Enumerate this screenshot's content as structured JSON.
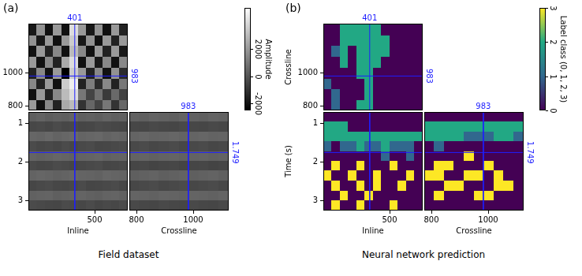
{
  "chart_data": [
    {
      "type": "heatmap",
      "panel_label": "(a)",
      "caption": "Field dataset",
      "colorbar": {
        "title": "Amplitude",
        "range": [
          -2500,
          5000
        ],
        "ticks": [
          -2000,
          0,
          2000
        ],
        "colors": [
          "#000000",
          "#ffffff"
        ]
      },
      "views": [
        {
          "xlim": [
            170,
            665
          ],
          "ylim": [
            775,
            1300
          ],
          "yticks": [
            800,
            1000
          ],
          "tick_labels": "y",
          "cursor_x": 401,
          "cursor_y": 983,
          "annotations": [
            {
              "text": "401",
              "x": 401
            },
            {
              "text": "983",
              "y": 983
            }
          ],
          "cells": [
            [
              2000,
              -2000,
              1500,
              -1500,
              2500,
              3000,
              -1000,
              500,
              -500,
              1000,
              -1000,
              500
            ],
            [
              -2000,
              2000,
              -1500,
              1500,
              3000,
              4000,
              1000,
              -500,
              800,
              -800,
              600,
              -600
            ],
            [
              1500,
              -1500,
              2000,
              -2000,
              3500,
              4500,
              -1500,
              1200,
              -1200,
              1500,
              -1500,
              1000
            ],
            [
              -1500,
              1500,
              -2000,
              2000,
              -2500,
              3500,
              2000,
              -1500,
              1500,
              -2000,
              1800,
              -1200
            ],
            [
              2000,
              -2000,
              1500,
              -1500,
              2500,
              4000,
              -2000,
              2000,
              -1800,
              1500,
              -2000,
              1500
            ],
            [
              -2000,
              2000,
              -1500,
              1500,
              -2000,
              3000,
              1500,
              -2000,
              2000,
              -1500,
              2000,
              -1800
            ],
            [
              1800,
              -1800,
              2000,
              -2000,
              2000,
              3500,
              -1800,
              1800,
              -2000,
              2000,
              -1500,
              2000
            ],
            [
              -1800,
              1800,
              -2000,
              2000,
              -2000,
              4000,
              2000,
              -1800,
              1800,
              -2000,
              2000,
              -1500
            ]
          ]
        },
        {
          "xlabel": "Inline",
          "xlim": [
            170,
            665
          ],
          "ylim": [
            0.7,
            3.25
          ],
          "xticks": [
            500
          ],
          "yticks": [
            1,
            2,
            3
          ],
          "cursor_x": 401,
          "cursor_y": 1.749,
          "cells": [
            [
              300,
              400,
              250,
              350,
              300,
              450,
              300,
              350,
              250,
              400,
              300,
              350
            ],
            [
              -400,
              -350,
              -450,
              -300,
              -400,
              -350,
              -450,
              -400,
              -300,
              -350,
              -400,
              -450
            ],
            [
              500,
              450,
              550,
              400,
              500,
              600,
              450,
              500,
              550,
              400,
              500,
              450
            ],
            [
              -300,
              -400,
              -350,
              -450,
              -300,
              -400,
              -350,
              -300,
              -450,
              -400,
              -350,
              -300
            ],
            [
              450,
              350,
              400,
              500,
              450,
              350,
              400,
              450,
              500,
              350,
              400,
              450
            ],
            [
              -350,
              -450,
              -400,
              -300,
              -350,
              -450,
              -400,
              -350,
              -300,
              -450,
              -400,
              -350
            ],
            [
              400,
              500,
              450,
              350,
              400,
              500,
              450,
              400,
              350,
              500,
              450,
              400
            ],
            [
              -450,
              -350,
              -300,
              -400,
              -450,
              -350,
              -300,
              -450,
              -400,
              -350,
              -300,
              -400
            ],
            [
              350,
              400,
              450,
              300,
              350,
              400,
              450,
              350,
              300,
              400,
              450,
              350
            ],
            [
              -300,
              -350,
              -400,
              -450,
              -300,
              -350,
              -400,
              -300,
              -450,
              -350,
              -400,
              -300
            ]
          ]
        },
        {
          "xlabel": "Crossline",
          "xlim": [
            775,
            1125
          ],
          "ylim": [
            0.7,
            3.25
          ],
          "xticks": [
            800,
            1000
          ],
          "tick_labels": "x",
          "cursor_x": 983,
          "cursor_y": 1.749,
          "annotations": [
            {
              "text": "983",
              "x": 983
            },
            {
              "text": "1.749",
              "y": 1.749
            }
          ],
          "cells": [
            [
              350,
              300,
              400,
              350,
              300,
              400,
              350,
              300,
              400,
              350
            ],
            [
              -400,
              -450,
              -350,
              -400,
              -450,
              -350,
              -400,
              -450,
              -350,
              -400
            ],
            [
              450,
              500,
              400,
              450,
              500,
              400,
              450,
              500,
              400,
              450
            ],
            [
              -350,
              -300,
              -400,
              -350,
              -300,
              -400,
              -350,
              -300,
              -400,
              -350
            ],
            [
              400,
              450,
              350,
              400,
              450,
              350,
              400,
              450,
              350,
              400
            ],
            [
              -450,
              -400,
              -500,
              -450,
              -400,
              -500,
              -450,
              -400,
              -500,
              -450
            ],
            [
              300,
              350,
              400,
              300,
              350,
              400,
              300,
              350,
              400,
              300
            ],
            [
              -400,
              -350,
              -300,
              -400,
              -350,
              -300,
              -400,
              -350,
              -300,
              -400
            ],
            [
              450,
              400,
              350,
              450,
              400,
              350,
              450,
              400,
              350,
              450
            ],
            [
              -350,
              -400,
              -450,
              -350,
              -400,
              -450,
              -350,
              -400,
              -450,
              -350
            ]
          ]
        }
      ]
    },
    {
      "type": "heatmap",
      "panel_label": "(b)",
      "caption": "Neural network prediction",
      "colorbar": {
        "title": "Label class (0, 1, 2, 3)",
        "range": [
          0,
          3
        ],
        "ticks": [
          0,
          1,
          2,
          3
        ],
        "colors": [
          "#440154",
          "#31688e",
          "#22a884",
          "#fde725"
        ]
      },
      "views": [
        {
          "ylabel": "Crossline",
          "xlim": [
            170,
            665
          ],
          "ylim": [
            775,
            1300
          ],
          "yticks": [
            800,
            1000
          ],
          "tick_labels": "y",
          "cursor_x": 401,
          "cursor_y": 983,
          "annotations": [
            {
              "text": "401",
              "x": 401
            },
            {
              "text": "983",
              "y": 983
            }
          ],
          "cells": [
            [
              0,
              1,
              0,
              0,
              2,
              2,
              0,
              0,
              0,
              0,
              0,
              0
            ],
            [
              0,
              1,
              0,
              0,
              0,
              2,
              0,
              0,
              0,
              0,
              0,
              0
            ],
            [
              1,
              0,
              0,
              0,
              0,
              2,
              0,
              0,
              0,
              0,
              0,
              0
            ],
            [
              0,
              0,
              0,
              0,
              2,
              2,
              0,
              0,
              0,
              0,
              0,
              0
            ],
            [
              0,
              0,
              2,
              0,
              2,
              2,
              2,
              0,
              0,
              0,
              0,
              0
            ],
            [
              0,
              1,
              2,
              0,
              2,
              2,
              2,
              2,
              0,
              0,
              0,
              0
            ],
            [
              0,
              0,
              2,
              2,
              2,
              2,
              2,
              2,
              0,
              0,
              0,
              0
            ],
            [
              0,
              0,
              2,
              2,
              2,
              2,
              2,
              0,
              0,
              0,
              0,
              0
            ]
          ]
        },
        {
          "xlabel": "Inline",
          "ylabel": "Time (s)",
          "xlim": [
            170,
            665
          ],
          "ylim": [
            0.7,
            3.25
          ],
          "xticks": [
            500
          ],
          "yticks": [
            1,
            2,
            3
          ],
          "cursor_x": 401,
          "cursor_y": 1.749,
          "cells": [
            [
              0,
              0,
              0,
              0,
              0,
              0,
              0,
              0,
              0,
              0,
              0,
              0
            ],
            [
              2,
              2,
              2,
              0,
              0,
              0,
              0,
              0,
              0,
              0,
              0,
              0
            ],
            [
              2,
              2,
              2,
              2,
              2,
              2,
              2,
              2,
              2,
              2,
              2,
              2
            ],
            [
              1,
              0,
              1,
              1,
              2,
              1,
              1,
              2,
              1,
              1,
              1,
              0
            ],
            [
              0,
              0,
              0,
              0,
              0,
              0,
              0,
              1,
              0,
              0,
              1,
              0
            ],
            [
              0,
              3,
              0,
              0,
              3,
              0,
              0,
              0,
              3,
              0,
              0,
              0
            ],
            [
              3,
              0,
              0,
              3,
              0,
              0,
              3,
              0,
              0,
              0,
              3,
              0
            ],
            [
              0,
              3,
              0,
              0,
              3,
              0,
              3,
              0,
              0,
              3,
              0,
              0
            ],
            [
              0,
              0,
              3,
              0,
              0,
              3,
              0,
              0,
              0,
              0,
              0,
              0
            ],
            [
              0,
              3,
              0,
              0,
              3,
              0,
              0,
              0,
              3,
              0,
              0,
              0
            ]
          ]
        },
        {
          "xlabel": "Crossline",
          "xlim": [
            775,
            1125
          ],
          "ylim": [
            0.7,
            3.25
          ],
          "xticks": [
            800,
            1000
          ],
          "tick_labels": "x",
          "cursor_x": 983,
          "cursor_y": 1.749,
          "annotations": [
            {
              "text": "983",
              "x": 983
            },
            {
              "text": "1.749",
              "y": 1.749
            }
          ],
          "cells": [
            [
              0,
              0,
              0,
              0,
              0,
              0,
              0,
              0,
              0,
              0
            ],
            [
              2,
              2,
              2,
              2,
              2,
              2,
              2,
              2,
              2,
              2
            ],
            [
              2,
              2,
              2,
              2,
              1,
              1,
              1,
              2,
              2,
              1
            ],
            [
              0,
              1,
              0,
              0,
              0,
              0,
              0,
              0,
              0,
              0
            ],
            [
              0,
              0,
              0,
              0,
              3,
              0,
              0,
              0,
              0,
              0
            ],
            [
              0,
              3,
              3,
              0,
              0,
              0,
              3,
              0,
              0,
              0
            ],
            [
              3,
              3,
              0,
              0,
              3,
              3,
              0,
              3,
              0,
              0
            ],
            [
              0,
              0,
              3,
              3,
              0,
              0,
              0,
              3,
              3,
              0
            ],
            [
              0,
              3,
              0,
              0,
              0,
              3,
              3,
              0,
              0,
              0
            ],
            [
              0,
              0,
              0,
              0,
              0,
              0,
              0,
              0,
              0,
              0
            ]
          ]
        }
      ]
    }
  ]
}
